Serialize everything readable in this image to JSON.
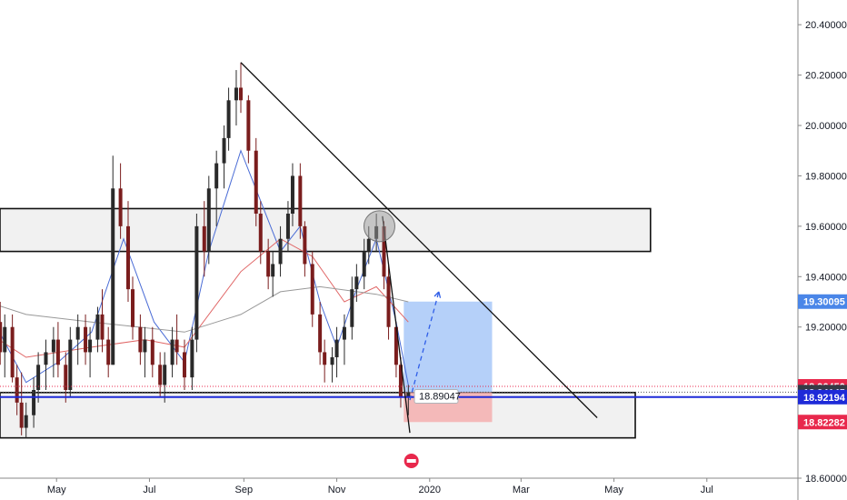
{
  "chart_data": {
    "type": "candlestick",
    "title": "",
    "xlabel": "",
    "ylabel": "",
    "ylim": [
      18.6,
      20.45
    ],
    "x_ticks": [
      "May",
      "Jul",
      "Sep",
      "Nov",
      "2020",
      "Mar",
      "May",
      "Jul"
    ],
    "y_ticks": [
      "20.40000",
      "20.20000",
      "20.00000",
      "19.80000",
      "19.60000",
      "19.40000",
      "19.20000",
      "18.60000"
    ],
    "grid": false,
    "price_tags": [
      {
        "label": "19.30095",
        "value": 19.30095,
        "color": "#4a86e8"
      },
      {
        "label": "18.96450",
        "value": 18.9645,
        "color": "#e8284c"
      },
      {
        "label": "18.94145",
        "value": 18.94145,
        "color": "#363a45"
      },
      {
        "label": "18.92194",
        "value": 18.92194,
        "color": "#1e2ad8"
      },
      {
        "label": "18.82282",
        "value": 18.82282,
        "color": "#e8284c"
      }
    ],
    "annotation": {
      "label": "18.89047",
      "value": 18.89047
    },
    "zones": [
      {
        "name": "resistance",
        "start": "2019-03-01",
        "end": "2020-05-25",
        "low": 19.5,
        "high": 19.67
      },
      {
        "name": "support",
        "start": "2019-03-01",
        "end": "2020-05-15",
        "low": 18.76,
        "high": 18.94
      }
    ],
    "long_position": {
      "start": "2019-12-15",
      "end": "2020-02-11",
      "entry": 18.94145,
      "target": 19.30095,
      "stop": 18.82282
    },
    "trendlines": [
      {
        "from": [
          "2019-08-30",
          20.25
        ],
        "to": [
          "2020-04-20",
          18.84
        ]
      },
      {
        "from": [
          "2019-12-01",
          19.64
        ],
        "to": [
          "2019-12-19",
          18.78
        ]
      }
    ],
    "projection": {
      "from": [
        "2019-12-19",
        18.91
      ],
      "to": [
        "2020-01-07",
        19.34
      ]
    },
    "horizontal_line": 18.92194,
    "highlight_circle": {
      "date": "2019-11-29",
      "value": 19.6
    },
    "candles_ohlc": [
      [
        "2019-03-01",
        19.21,
        19.32,
        18.81,
        18.89
      ],
      [
        "2019-03-04",
        18.9,
        19.1,
        18.8,
        19.05
      ],
      [
        "2019-03-07",
        19.05,
        19.35,
        19.0,
        19.3
      ],
      [
        "2019-03-12",
        19.3,
        19.42,
        19.2,
        19.25
      ],
      [
        "2019-03-15",
        19.25,
        19.4,
        19.15,
        19.38
      ],
      [
        "2019-03-20",
        19.38,
        19.47,
        19.2,
        19.22
      ],
      [
        "2019-03-25",
        19.22,
        19.3,
        19.05,
        19.1
      ],
      [
        "2019-03-28",
        19.1,
        19.25,
        19.0,
        19.2
      ],
      [
        "2019-04-02",
        19.2,
        19.25,
        18.98,
        19.0
      ],
      [
        "2019-04-05",
        19.0,
        19.05,
        18.85,
        18.9
      ],
      [
        "2019-04-08",
        18.9,
        19.02,
        18.77,
        18.8
      ],
      [
        "2019-04-11",
        18.8,
        18.9,
        18.76,
        18.85
      ],
      [
        "2019-04-16",
        18.85,
        19.0,
        18.8,
        18.95
      ],
      [
        "2019-04-19",
        18.95,
        19.1,
        18.9,
        19.05
      ],
      [
        "2019-04-24",
        19.05,
        19.15,
        18.95,
        19.1
      ],
      [
        "2019-04-29",
        19.1,
        19.2,
        19.0,
        19.15
      ],
      [
        "2019-05-02",
        19.15,
        19.22,
        19.0,
        19.05
      ],
      [
        "2019-05-07",
        19.05,
        19.1,
        18.9,
        18.95
      ],
      [
        "2019-05-10",
        18.95,
        19.2,
        18.92,
        19.15
      ],
      [
        "2019-05-15",
        19.15,
        19.25,
        19.05,
        19.2
      ],
      [
        "2019-05-20",
        19.2,
        19.25,
        19.05,
        19.1
      ],
      [
        "2019-05-23",
        19.1,
        19.2,
        19.0,
        19.15
      ],
      [
        "2019-05-28",
        19.15,
        19.28,
        19.1,
        19.25
      ],
      [
        "2019-05-31",
        19.25,
        19.35,
        19.1,
        19.15
      ],
      [
        "2019-06-04",
        19.15,
        19.2,
        19.0,
        19.05
      ],
      [
        "2019-06-07",
        19.05,
        19.88,
        19.05,
        19.75
      ],
      [
        "2019-06-12",
        19.75,
        19.85,
        19.55,
        19.6
      ],
      [
        "2019-06-17",
        19.6,
        19.7,
        19.3,
        19.35
      ],
      [
        "2019-06-20",
        19.35,
        19.4,
        19.15,
        19.2
      ],
      [
        "2019-06-25",
        19.2,
        19.25,
        19.05,
        19.1
      ],
      [
        "2019-06-28",
        19.1,
        19.2,
        19.0,
        19.15
      ],
      [
        "2019-07-03",
        19.15,
        19.2,
        19.0,
        19.05
      ],
      [
        "2019-07-08",
        19.05,
        19.1,
        18.92,
        18.97
      ],
      [
        "2019-07-11",
        18.97,
        19.1,
        18.9,
        19.05
      ],
      [
        "2019-07-16",
        19.05,
        19.2,
        19.0,
        19.15
      ],
      [
        "2019-07-19",
        19.15,
        19.25,
        19.05,
        19.1
      ],
      [
        "2019-07-24",
        19.1,
        19.15,
        18.95,
        19.0
      ],
      [
        "2019-07-29",
        19.0,
        19.2,
        18.95,
        19.15
      ],
      [
        "2019-08-01",
        19.15,
        19.65,
        19.1,
        19.6
      ],
      [
        "2019-08-06",
        19.6,
        19.7,
        19.4,
        19.5
      ],
      [
        "2019-08-09",
        19.5,
        19.8,
        19.45,
        19.75
      ],
      [
        "2019-08-14",
        19.75,
        19.9,
        19.6,
        19.85
      ],
      [
        "2019-08-19",
        19.85,
        20.0,
        19.75,
        19.95
      ],
      [
        "2019-08-22",
        19.95,
        20.15,
        19.9,
        20.1
      ],
      [
        "2019-08-27",
        20.1,
        20.22,
        20.0,
        20.15
      ],
      [
        "2019-08-30",
        20.15,
        20.25,
        20.05,
        20.1
      ],
      [
        "2019-09-04",
        20.1,
        20.12,
        19.85,
        19.9
      ],
      [
        "2019-09-09",
        19.9,
        19.95,
        19.6,
        19.65
      ],
      [
        "2019-09-12",
        19.65,
        19.7,
        19.45,
        19.5
      ],
      [
        "2019-09-17",
        19.5,
        19.55,
        19.35,
        19.4
      ],
      [
        "2019-09-20",
        19.4,
        19.5,
        19.32,
        19.45
      ],
      [
        "2019-09-25",
        19.45,
        19.6,
        19.4,
        19.55
      ],
      [
        "2019-09-30",
        19.55,
        19.7,
        19.5,
        19.65
      ],
      [
        "2019-10-03",
        19.65,
        19.85,
        19.6,
        19.8
      ],
      [
        "2019-10-08",
        19.8,
        19.85,
        19.55,
        19.6
      ],
      [
        "2019-10-11",
        19.6,
        19.62,
        19.4,
        19.45
      ],
      [
        "2019-10-16",
        19.45,
        19.5,
        19.2,
        19.25
      ],
      [
        "2019-10-21",
        19.25,
        19.3,
        19.05,
        19.1
      ],
      [
        "2019-10-24",
        19.1,
        19.15,
        18.98,
        19.05
      ],
      [
        "2019-10-29",
        19.05,
        19.12,
        18.98,
        19.08
      ],
      [
        "2019-11-01",
        19.08,
        19.2,
        19.0,
        19.15
      ],
      [
        "2019-11-06",
        19.15,
        19.25,
        19.05,
        19.2
      ],
      [
        "2019-11-11",
        19.2,
        19.4,
        19.15,
        19.35
      ],
      [
        "2019-11-14",
        19.35,
        19.45,
        19.3,
        19.4
      ],
      [
        "2019-11-19",
        19.4,
        19.55,
        19.35,
        19.5
      ],
      [
        "2019-11-22",
        19.5,
        19.6,
        19.45,
        19.55
      ],
      [
        "2019-11-27",
        19.55,
        19.65,
        19.5,
        19.6
      ],
      [
        "2019-12-02",
        19.6,
        19.62,
        19.35,
        19.4
      ],
      [
        "2019-12-05",
        19.4,
        19.45,
        19.15,
        19.2
      ],
      [
        "2019-12-10",
        19.2,
        19.22,
        19.0,
        19.05
      ],
      [
        "2019-12-13",
        19.05,
        19.08,
        18.88,
        18.92
      ],
      [
        "2019-12-18",
        18.92,
        18.97,
        18.85,
        18.94
      ]
    ],
    "moving_averages": [
      {
        "color": "#4a6cd6",
        "points": [
          [
            "2019-03-01",
            19.2
          ],
          [
            "2019-03-21",
            19.22
          ],
          [
            "2019-04-11",
            18.98
          ],
          [
            "2019-05-02",
            19.06
          ],
          [
            "2019-05-24",
            19.18
          ],
          [
            "2019-06-14",
            19.55
          ],
          [
            "2019-07-04",
            19.22
          ],
          [
            "2019-07-24",
            19.06
          ],
          [
            "2019-08-09",
            19.5
          ],
          [
            "2019-08-30",
            19.9
          ],
          [
            "2019-09-12",
            19.7
          ],
          [
            "2019-09-25",
            19.5
          ],
          [
            "2019-10-08",
            19.6
          ],
          [
            "2019-10-21",
            19.3
          ],
          [
            "2019-11-01",
            19.12
          ],
          [
            "2019-11-14",
            19.35
          ],
          [
            "2019-11-27",
            19.55
          ],
          [
            "2019-12-10",
            19.22
          ],
          [
            "2019-12-18",
            18.97
          ]
        ]
      },
      {
        "color": "#e06666",
        "points": [
          [
            "2019-03-01",
            19.24
          ],
          [
            "2019-04-11",
            19.08
          ],
          [
            "2019-05-24",
            19.12
          ],
          [
            "2019-06-28",
            19.15
          ],
          [
            "2019-07-24",
            19.12
          ],
          [
            "2019-08-30",
            19.42
          ],
          [
            "2019-09-25",
            19.55
          ],
          [
            "2019-10-16",
            19.48
          ],
          [
            "2019-11-06",
            19.3
          ],
          [
            "2019-11-27",
            19.36
          ],
          [
            "2019-12-18",
            19.22
          ]
        ]
      },
      {
        "color": "#999999",
        "points": [
          [
            "2019-03-01",
            19.33
          ],
          [
            "2019-04-11",
            19.25
          ],
          [
            "2019-05-24",
            19.22
          ],
          [
            "2019-07-24",
            19.18
          ],
          [
            "2019-08-30",
            19.25
          ],
          [
            "2019-09-25",
            19.34
          ],
          [
            "2019-10-21",
            19.36
          ],
          [
            "2019-11-27",
            19.33
          ],
          [
            "2019-12-18",
            19.3
          ]
        ]
      }
    ]
  }
}
